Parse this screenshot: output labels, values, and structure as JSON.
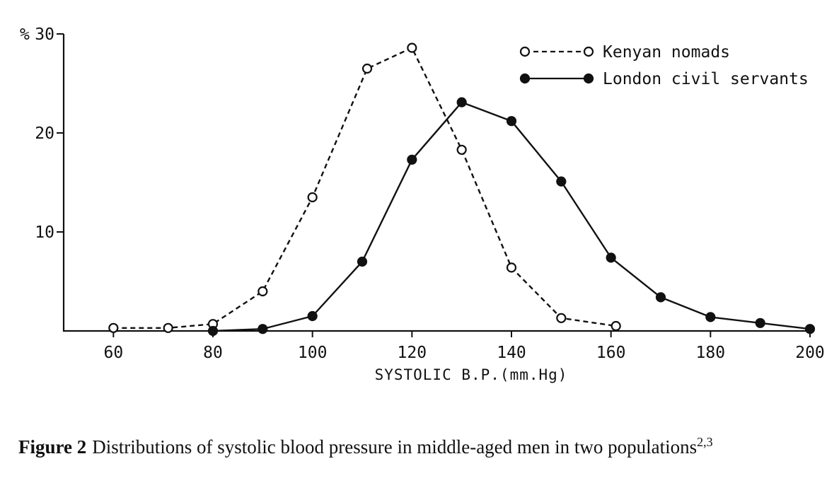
{
  "chart_data": {
    "type": "line",
    "xlabel": "SYSTOLIC B.P.(mm.Hg)",
    "y_unit": "%",
    "xlim": [
      50,
      200
    ],
    "ylim": [
      0,
      30
    ],
    "x_ticks": [
      "60",
      "80",
      "100",
      "120",
      "140",
      "160",
      "180",
      "200"
    ],
    "y_ticks": [
      "10",
      "20",
      "30"
    ],
    "grid": false,
    "legend_position": "top-right",
    "series": [
      {
        "name": "Kenyan nomads",
        "style": "dashed",
        "marker": "open-circle",
        "x": [
          60,
          71,
          80,
          90,
          100,
          111,
          120,
          130,
          140,
          150,
          161
        ],
        "y": [
          0.3,
          0.3,
          0.7,
          4.0,
          13.5,
          26.5,
          28.6,
          18.3,
          6.4,
          1.3,
          0.5
        ]
      },
      {
        "name": "London civil servants",
        "style": "solid",
        "marker": "filled-circle",
        "x": [
          80,
          90,
          100,
          110,
          120,
          130,
          140,
          150,
          160,
          170,
          180,
          190,
          200
        ],
        "y": [
          0.0,
          0.2,
          1.5,
          7.0,
          17.3,
          23.1,
          21.2,
          15.1,
          7.4,
          3.4,
          1.4,
          0.8,
          0.2
        ]
      }
    ]
  },
  "caption": {
    "label": "Figure 2",
    "text": "Distributions of systolic blood pressure in middle-aged men in two populations",
    "refs": "2,3"
  }
}
